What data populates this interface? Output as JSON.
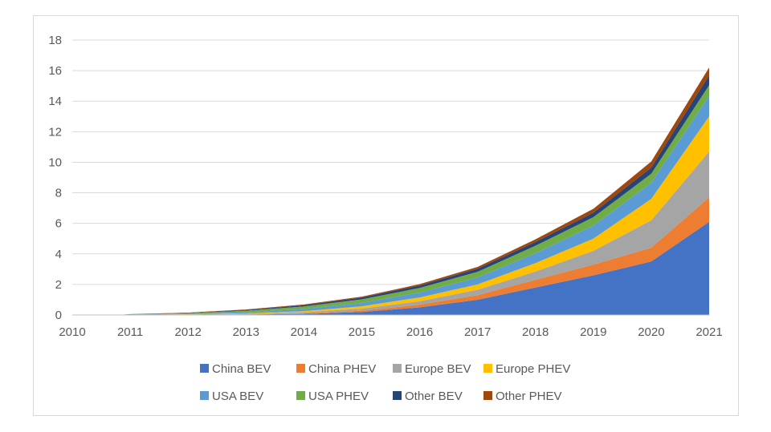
{
  "chart_data": {
    "type": "area",
    "stacked": true,
    "title": "",
    "xlabel": "",
    "ylabel": "",
    "xlim": [
      2010,
      2021
    ],
    "ylim": [
      0,
      18
    ],
    "x_ticks": [
      "2010",
      "2011",
      "2012",
      "2013",
      "2014",
      "2015",
      "2016",
      "2017",
      "2018",
      "2019",
      "2020",
      "2021"
    ],
    "y_ticks": [
      "0",
      "2",
      "4",
      "6",
      "8",
      "10",
      "12",
      "14",
      "16",
      "18"
    ],
    "grid": "horizontal",
    "legend_position": "bottom",
    "x": [
      2010.8,
      2011,
      2012,
      2013,
      2014,
      2015,
      2016,
      2017,
      2018,
      2019,
      2020,
      2021
    ],
    "series": [
      {
        "name": "China BEV",
        "color": "#4472C4",
        "values": [
          0,
          0.01,
          0.02,
          0.03,
          0.07,
          0.2,
          0.5,
          1.0,
          1.8,
          2.6,
          3.5,
          6.1
        ]
      },
      {
        "name": "China PHEV",
        "color": "#ED7D31",
        "values": [
          0,
          0.0,
          0.0,
          0.01,
          0.03,
          0.08,
          0.18,
          0.3,
          0.5,
          0.7,
          0.9,
          1.6
        ]
      },
      {
        "name": "Europe BEV",
        "color": "#A5A5A5",
        "values": [
          0,
          0.01,
          0.02,
          0.04,
          0.08,
          0.14,
          0.22,
          0.35,
          0.55,
          0.9,
          1.8,
          3.0
        ]
      },
      {
        "name": "Europe PHEV",
        "color": "#FFC000",
        "values": [
          0,
          0.0,
          0.01,
          0.03,
          0.07,
          0.15,
          0.25,
          0.35,
          0.55,
          0.8,
          1.4,
          2.3
        ]
      },
      {
        "name": "USA BEV",
        "color": "#5B9BD5",
        "values": [
          0,
          0.01,
          0.03,
          0.07,
          0.14,
          0.22,
          0.32,
          0.45,
          0.65,
          0.85,
          1.05,
          1.35
        ]
      },
      {
        "name": "USA PHEV",
        "color": "#70AD47",
        "values": [
          0,
          0.01,
          0.04,
          0.1,
          0.17,
          0.23,
          0.3,
          0.38,
          0.48,
          0.55,
          0.6,
          0.7
        ]
      },
      {
        "name": "Other BEV",
        "color": "#264478",
        "values": [
          0,
          0.01,
          0.02,
          0.05,
          0.08,
          0.12,
          0.16,
          0.2,
          0.25,
          0.3,
          0.4,
          0.65
        ]
      },
      {
        "name": "Other PHEV",
        "color": "#9E480E",
        "values": [
          0,
          0.01,
          0.02,
          0.03,
          0.05,
          0.06,
          0.09,
          0.12,
          0.17,
          0.25,
          0.4,
          0.5
        ]
      }
    ]
  }
}
